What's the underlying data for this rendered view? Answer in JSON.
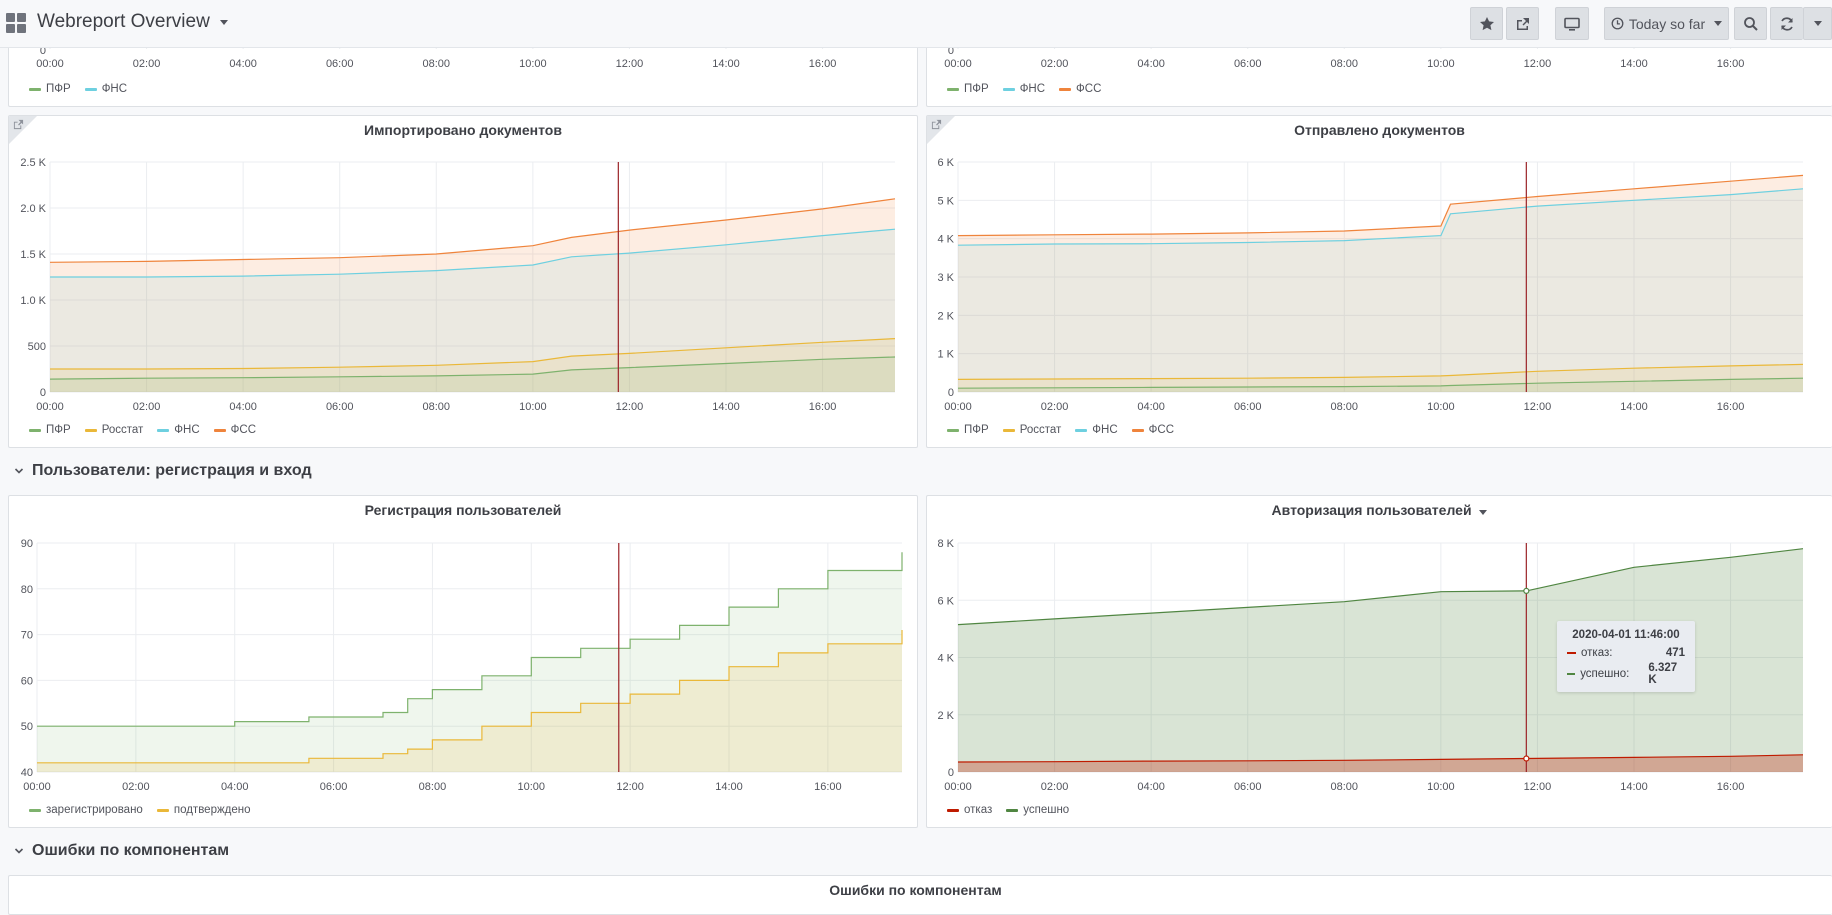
{
  "navbar": {
    "title": "Webreport Overview",
    "time_range": "Today so far",
    "icons": [
      "star-icon",
      "share-icon",
      "tv-icon",
      "clock-icon",
      "zoom-out-icon",
      "refresh-icon"
    ]
  },
  "rows": {
    "users": "Пользователи: регистрация и вход",
    "errors": "Ошибки по компонентам"
  },
  "x_ticks": [
    "00:00",
    "02:00",
    "04:00",
    "06:00",
    "08:00",
    "10:00",
    "12:00",
    "14:00",
    "16:00"
  ],
  "colors": {
    "green": "#7eb26d",
    "yellow": "#eab839",
    "cyan": "#6ed0e0",
    "orange": "#ef843c",
    "red": "#bf1b00",
    "dark_green": "#508642"
  },
  "panels": {
    "top_left": {
      "legend": [
        "ПФР",
        "ФНС"
      ],
      "y_tick": "0"
    },
    "top_right": {
      "legend": [
        "ПФР",
        "ФНС",
        "ФСС"
      ],
      "y_tick": "0"
    },
    "imported": {
      "title": "Импортировано документов",
      "legend": [
        "ПФР",
        "Росстат",
        "ФНС",
        "ФСС"
      ],
      "y_ticks": [
        "2.5 K",
        "2.0 K",
        "1.5 K",
        "1.0 K",
        "500",
        "0"
      ]
    },
    "sent": {
      "title": "Отправлено документов",
      "legend": [
        "ПФР",
        "Росстат",
        "ФНС",
        "ФСС"
      ],
      "y_ticks": [
        "6 K",
        "5 K",
        "4 K",
        "3 K",
        "2 K",
        "1 K",
        "0"
      ]
    },
    "registration": {
      "title": "Регистрация пользователей",
      "legend": [
        "зарегистрировано",
        "подтверждено"
      ],
      "y_ticks": [
        "90",
        "80",
        "70",
        "60",
        "50",
        "40"
      ]
    },
    "auth": {
      "title": "Авторизация пользователей",
      "legend": [
        "отказ",
        "успешно"
      ],
      "y_ticks": [
        "8 K",
        "6 K",
        "4 K",
        "2 K",
        "0"
      ],
      "tooltip": {
        "time": "2020-04-01 11:46:00",
        "rows": [
          {
            "label": "отказ:",
            "value": "471"
          },
          {
            "label": "успешно:",
            "value": "6.327 K"
          }
        ]
      }
    },
    "errors": {
      "title": "Ошибки по компонентам"
    }
  },
  "chart_data": [
    {
      "type": "area",
      "title": "Импортировано документов",
      "x": [
        0,
        2,
        4,
        6,
        8,
        10,
        10.8,
        12,
        14,
        16,
        17.5
      ],
      "ylim": [
        0,
        2500
      ],
      "series": [
        {
          "name": "ПФР",
          "values": [
            140,
            150,
            155,
            165,
            175,
            195,
            240,
            265,
            310,
            355,
            380
          ]
        },
        {
          "name": "Росстат",
          "values": [
            250,
            250,
            255,
            270,
            290,
            330,
            390,
            420,
            480,
            540,
            580
          ]
        },
        {
          "name": "ФНС",
          "values": [
            1250,
            1250,
            1260,
            1280,
            1320,
            1380,
            1470,
            1510,
            1600,
            1700,
            1770
          ]
        },
        {
          "name": "ФСС",
          "values": [
            1410,
            1420,
            1440,
            1460,
            1500,
            1590,
            1680,
            1760,
            1870,
            1990,
            2100
          ]
        }
      ]
    },
    {
      "type": "area",
      "title": "Отправлено документов",
      "x": [
        0,
        2,
        4,
        6,
        8,
        10,
        10.2,
        12,
        14,
        16,
        17.5
      ],
      "ylim": [
        0,
        6000
      ],
      "series": [
        {
          "name": "ПФР",
          "values": [
            100,
            110,
            120,
            130,
            140,
            160,
            170,
            230,
            280,
            330,
            360
          ]
        },
        {
          "name": "Росстат",
          "values": [
            330,
            340,
            350,
            360,
            380,
            420,
            430,
            540,
            620,
            680,
            720
          ]
        },
        {
          "name": "ФНС",
          "values": [
            3830,
            3860,
            3870,
            3900,
            3950,
            4080,
            4650,
            4850,
            5000,
            5150,
            5300
          ]
        },
        {
          "name": "ФСС",
          "values": [
            4080,
            4100,
            4120,
            4150,
            4200,
            4330,
            4900,
            5100,
            5300,
            5500,
            5650
          ]
        }
      ]
    },
    {
      "type": "line",
      "title": "Регистрация пользователей",
      "x": [
        0,
        4,
        5.5,
        7,
        7.5,
        8,
        9,
        10,
        11,
        12,
        13,
        14,
        15,
        16,
        17.5
      ],
      "ylim": [
        40,
        90
      ],
      "series": [
        {
          "name": "зарегистрировано",
          "values": [
            50,
            51,
            52,
            53,
            56,
            58,
            61,
            65,
            67,
            69,
            72,
            76,
            80,
            84,
            88
          ]
        },
        {
          "name": "подтверждено",
          "values": [
            42,
            42,
            43,
            44,
            45,
            47,
            50,
            53,
            55,
            57,
            60,
            63,
            66,
            68,
            71
          ]
        }
      ]
    },
    {
      "type": "area",
      "title": "Авторизация пользователей",
      "x": [
        0,
        2,
        4,
        6,
        8,
        10,
        11.77,
        14,
        16,
        17.5
      ],
      "ylim": [
        0,
        8000
      ],
      "series": [
        {
          "name": "отказ",
          "values": [
            350,
            360,
            380,
            390,
            410,
            440,
            471,
            510,
            550,
            600
          ]
        },
        {
          "name": "успешно",
          "values": [
            5150,
            5350,
            5550,
            5750,
            5950,
            6300,
            6327,
            7150,
            7500,
            7800
          ]
        }
      ]
    }
  ]
}
